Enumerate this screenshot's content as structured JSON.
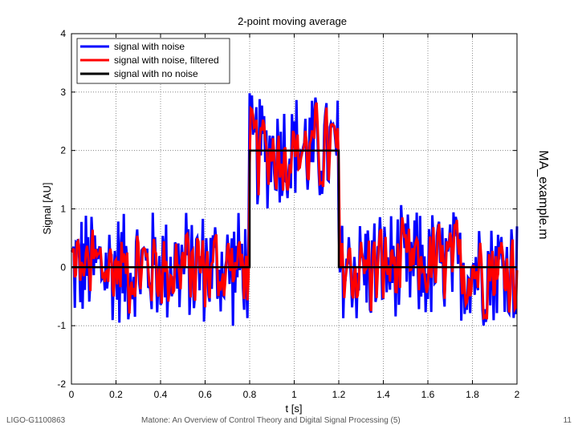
{
  "chart_data": {
    "type": "line",
    "title": "2-point moving average",
    "xlabel": "t [s]",
    "ylabel": "Signal [AU]",
    "xlim": [
      0,
      2
    ],
    "ylim": [
      -2,
      4
    ],
    "xticks": [
      "0",
      "0.2",
      "0.4",
      "0.6",
      "0.8",
      "1",
      "1.2",
      "1.4",
      "1.6",
      "1.8",
      "2"
    ],
    "yticks": [
      "-2",
      "-1",
      "0",
      "1",
      "2",
      "3",
      "4"
    ],
    "grid": true,
    "legend_position": "top-left",
    "side_label": "MA_example.m",
    "series": [
      {
        "name": "signal with noise",
        "color": "#0000ff",
        "description": "square pulse (0 to 2 between t=0.8 and t=1.2) plus uniform noise of amplitude about ±1",
        "clean_level_outside": 0,
        "clean_level_pulse": 2,
        "noise_amplitude": 1.0,
        "samples": 400
      },
      {
        "name": "signal with noise, filtered",
        "color": "#ff0000",
        "description": "2-point moving average of the noisy signal",
        "window": 2
      },
      {
        "name": "signal with no noise",
        "color": "#000000",
        "x": [
          0,
          0.8,
          0.8,
          1.2,
          1.2,
          2
        ],
        "y": [
          0,
          0,
          2,
          2,
          0,
          0
        ]
      }
    ]
  },
  "footer": {
    "left": "LIGO-G1100863",
    "center": "Matone: An Overview of Control Theory and Digital Signal Processing (5)",
    "page": "11"
  }
}
